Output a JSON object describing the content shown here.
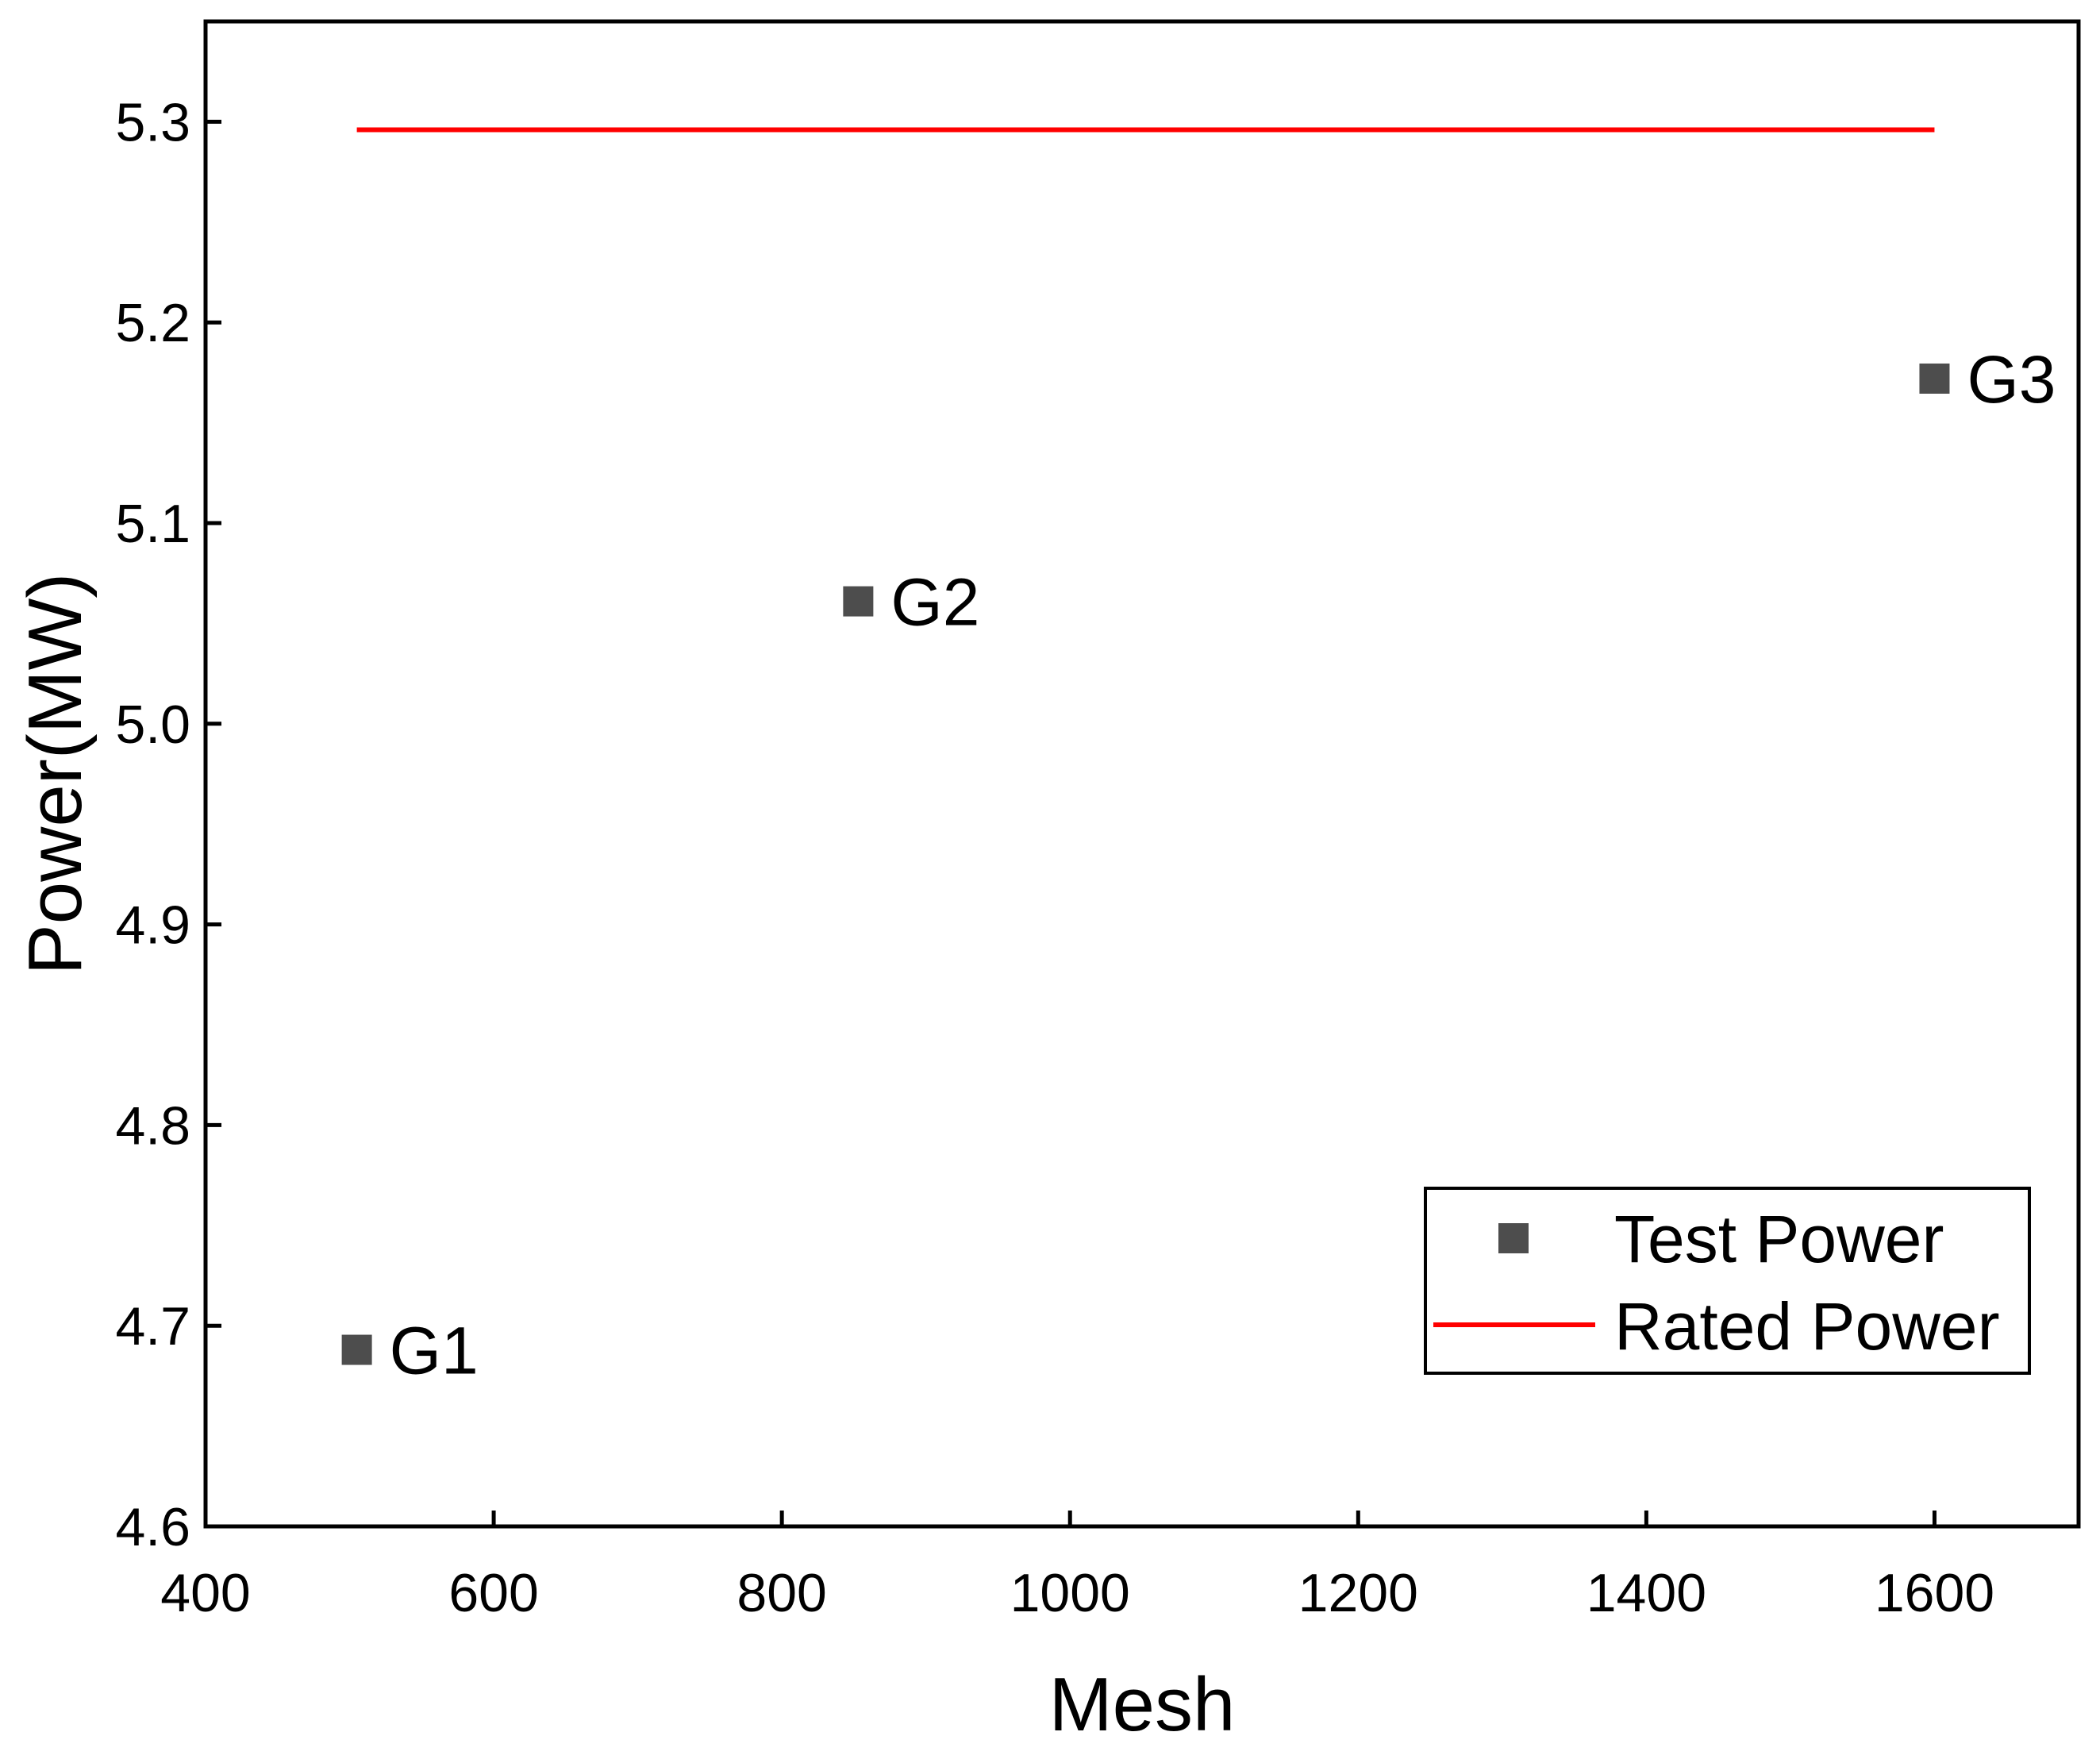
{
  "chart_data": {
    "type": "scatter",
    "title": "",
    "xlabel": "Mesh",
    "ylabel": "Power(MW)",
    "xlim": [
      400,
      1700
    ],
    "ylim": [
      4.6,
      5.35
    ],
    "xticks": [
      400,
      600,
      800,
      1000,
      1200,
      1400,
      1600
    ],
    "xtick_labels": [
      "400",
      "600",
      "800",
      "1000",
      "1200",
      "1400",
      "1600"
    ],
    "yticks": [
      4.6,
      4.7,
      4.8,
      4.9,
      5.0,
      5.1,
      5.2,
      5.3
    ],
    "ytick_labels": [
      "4.6",
      "4.7",
      "4.8",
      "4.9",
      "5.0",
      "5.1",
      "5.2",
      "5.3"
    ],
    "grid": false,
    "legend_position": "bottom-right",
    "series": [
      {
        "name": "Test Power",
        "kind": "scatter",
        "marker": "square",
        "color": "#4d4d4d",
        "points": [
          {
            "x": 505,
            "y": 4.688,
            "label": "G1"
          },
          {
            "x": 853,
            "y": 5.061,
            "label": "G2"
          },
          {
            "x": 1600,
            "y": 5.172,
            "label": "G3"
          }
        ]
      },
      {
        "name": "Rated Power",
        "kind": "line",
        "color": "#ff0000",
        "x": [
          505,
          1600
        ],
        "y": [
          5.296,
          5.296
        ]
      }
    ]
  }
}
